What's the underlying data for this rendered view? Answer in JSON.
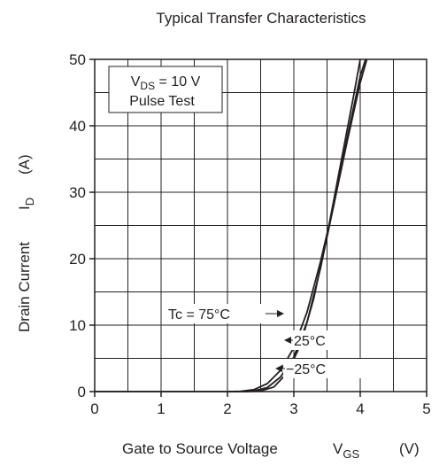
{
  "chart_data": {
    "type": "line",
    "title": "Typical Transfer Characteristics",
    "xlabel": {
      "text": "Gate to Source Voltage",
      "symbol": "V",
      "sub": "GS",
      "unit": "(V)"
    },
    "ylabel": {
      "text": "Drain Current",
      "symbol": "I",
      "sub": "D",
      "unit": "(A)"
    },
    "xlim": [
      0,
      5
    ],
    "ylim": [
      0,
      50
    ],
    "xticks": [
      "0",
      "1",
      "2",
      "3",
      "4",
      "5"
    ],
    "yticks": [
      "0",
      "10",
      "20",
      "30",
      "40",
      "50"
    ],
    "grid": true,
    "conditions": {
      "line1_symbol": "V",
      "line1_sub": "DS",
      "line1_value": " = 10 V",
      "line2": "Pulse Test"
    },
    "series": [
      {
        "name": "Tc = 75°C",
        "points": [
          [
            2.0,
            0
          ],
          [
            2.2,
            0.05
          ],
          [
            2.4,
            0.3
          ],
          [
            2.6,
            1.2
          ],
          [
            2.8,
            3.2
          ],
          [
            3.0,
            6.6
          ],
          [
            3.2,
            12.0
          ],
          [
            3.4,
            19.5
          ],
          [
            3.6,
            28.0
          ],
          [
            3.8,
            37.5
          ],
          [
            4.0,
            46.5
          ],
          [
            4.1,
            50
          ]
        ]
      },
      {
        "name": "25°C",
        "points": [
          [
            2.2,
            0
          ],
          [
            2.4,
            0.1
          ],
          [
            2.6,
            0.6
          ],
          [
            2.8,
            2.2
          ],
          [
            3.0,
            5.2
          ],
          [
            3.2,
            10.5
          ],
          [
            3.4,
            18.5
          ],
          [
            3.6,
            28.0
          ],
          [
            3.8,
            38.0
          ],
          [
            4.0,
            47.5
          ],
          [
            4.08,
            50
          ]
        ]
      },
      {
        "name": "−25°C",
        "points": [
          [
            2.3,
            0
          ],
          [
            2.5,
            0.1
          ],
          [
            2.7,
            0.7
          ],
          [
            2.9,
            2.8
          ],
          [
            3.1,
            7.0
          ],
          [
            3.3,
            14.0
          ],
          [
            3.5,
            23.5
          ],
          [
            3.7,
            34.0
          ],
          [
            3.9,
            44.5
          ],
          [
            4.0,
            50
          ]
        ]
      }
    ],
    "annotations": [
      "Tc = 75°C",
      "25°C",
      "−25°C"
    ]
  }
}
